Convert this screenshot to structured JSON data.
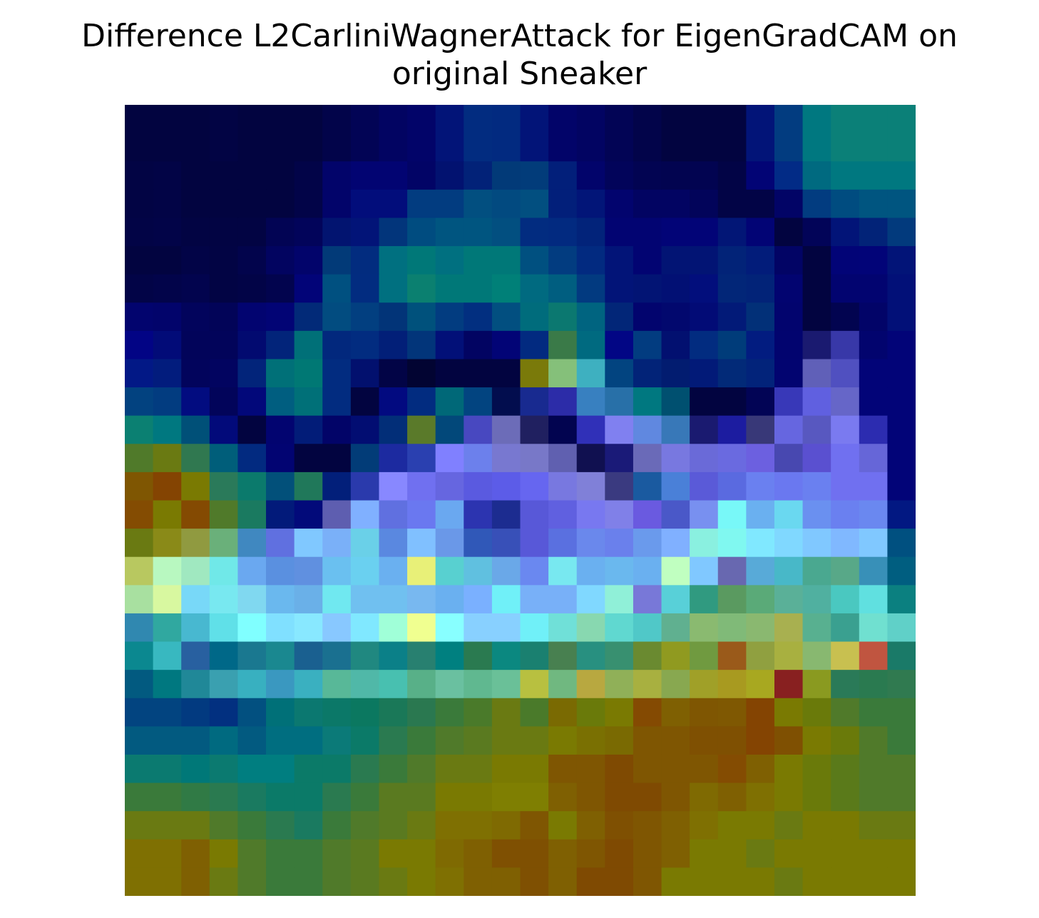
{
  "chart_data": {
    "type": "heatmap",
    "title_lines": [
      "Difference L2CarliniWagnerAttack for EigenGradCAM on",
      "original Sneaker"
    ],
    "axes_visible": false,
    "rows": 28,
    "cols": 28,
    "cells": [
      [
        "#020440",
        "#020440",
        "#020440",
        "#020444",
        "#020440",
        "#020440",
        "#020440",
        "#02044a",
        "#020455",
        "#020462",
        "#020469",
        "#021478",
        "#022c80",
        "#022a80",
        "#021478",
        "#020469",
        "#020462",
        "#020455",
        "#02044a",
        "#020440",
        "#020440",
        "#020440",
        "#021478",
        "#023c80",
        "#007880",
        "#0b8078",
        "#0b8078",
        "#0b8078"
      ],
      [
        "#020440",
        "#020440",
        "#020440",
        "#020444",
        "#020440",
        "#020440",
        "#020440",
        "#02044a",
        "#020455",
        "#020462",
        "#020469",
        "#021478",
        "#022c80",
        "#022a80",
        "#021478",
        "#020469",
        "#020462",
        "#020455",
        "#02044a",
        "#020440",
        "#020440",
        "#020440",
        "#021478",
        "#023c80",
        "#007880",
        "#0b8078",
        "#0b8078",
        "#0b8078"
      ],
      [
        "#020444",
        "#020446",
        "#020440",
        "#020440",
        "#020440",
        "#020440",
        "#020448",
        "#02046a",
        "#020472",
        "#020472",
        "#020466",
        "#021270",
        "#022278",
        "#023a78",
        "#023c7a",
        "#021f7a",
        "#02046b",
        "#02045a",
        "#020452",
        "#020450",
        "#020451",
        "#020446",
        "#020475",
        "#022b86",
        "#006a80",
        "#007880",
        "#007880",
        "#007880"
      ],
      [
        "#020444",
        "#020446",
        "#020440",
        "#020440",
        "#020440",
        "#020440",
        "#020448",
        "#02046a",
        "#020d7b",
        "#020d7b",
        "#023c80",
        "#023c80",
        "#024f80",
        "#024a80",
        "#024f80",
        "#021f7a",
        "#021578",
        "#02046e",
        "#020462",
        "#020462",
        "#02045a",
        "#020446",
        "#020446",
        "#020466",
        "#023c80",
        "#004c80",
        "#005580",
        "#005580"
      ],
      [
        "#020446",
        "#020448",
        "#020443",
        "#020443",
        "#020443",
        "#020454",
        "#02045a",
        "#021470",
        "#021478",
        "#02357b",
        "#004c80",
        "#005580",
        "#005580",
        "#024f80",
        "#022c80",
        "#022a80",
        "#02237a",
        "#020472",
        "#020472",
        "#020477",
        "#020477",
        "#021676",
        "#020475",
        "#020440",
        "#020458",
        "#021478",
        "#022378",
        "#023a7d"
      ],
      [
        "#020440",
        "#020440",
        "#020447",
        "#020444",
        "#02044c",
        "#020460",
        "#02046b",
        "#023a78",
        "#022c7f",
        "#007080",
        "#007878",
        "#007080",
        "#007878",
        "#007878",
        "#005080",
        "#023c80",
        "#022a80",
        "#021478",
        "#020472",
        "#021474",
        "#021474",
        "#022378",
        "#021c7a",
        "#020465",
        "#020440",
        "#020477",
        "#020478",
        "#021478"
      ],
      [
        "#020447",
        "#02044a",
        "#02044e",
        "#020444",
        "#020447",
        "#02044e",
        "#020478",
        "#005080",
        "#022c80",
        "#007080",
        "#0b8070",
        "#007878",
        "#007878",
        "#008078",
        "#006a80",
        "#005e80",
        "#023a80",
        "#021478",
        "#021474",
        "#021074",
        "#020e7c",
        "#022678",
        "#022378",
        "#020470",
        "#020440",
        "#020470",
        "#020470",
        "#021078"
      ],
      [
        "#02046e",
        "#02046b",
        "#02045c",
        "#020458",
        "#020470",
        "#020475",
        "#022a78",
        "#024c80",
        "#023f80",
        "#023478",
        "#00517c",
        "#023c80",
        "#022f80",
        "#024f80",
        "#006c7c",
        "#0b7870",
        "#006480",
        "#022678",
        "#02046e",
        "#02086e",
        "#020b76",
        "#021a78",
        "#023078",
        "#02046e",
        "#020440",
        "#020450",
        "#020468",
        "#021078"
      ],
      [
        "#020485",
        "#020b78",
        "#02045a",
        "#02045a",
        "#020a70",
        "#02247a",
        "#007078",
        "#02287d",
        "#022c80",
        "#021f78",
        "#02357a",
        "#021078",
        "#020462",
        "#020476",
        "#022a80",
        "#3a7a48",
        "#006a80",
        "#020685",
        "#023c80",
        "#021070",
        "#022c80",
        "#003c7a",
        "#021c80",
        "#02046f",
        "#1a1a70",
        "#3838a8",
        "#02046e",
        "#020478"
      ],
      [
        "#021886",
        "#021c7d",
        "#02045c",
        "#020460",
        "#02247a",
        "#007078",
        "#007874",
        "#022c80",
        "#02106e",
        "#020446",
        "#020432",
        "#020440",
        "#020440",
        "#020440",
        "#7a7a0a",
        "#85c07a",
        "#3eb0c0",
        "#024480",
        "#022378",
        "#021c70",
        "#021a78",
        "#022a78",
        "#02237a",
        "#020470",
        "#6060b8",
        "#5050c0",
        "#020478",
        "#020478"
      ],
      [
        "#024280",
        "#023c80",
        "#020c80",
        "#02045a",
        "#02087a",
        "#005e80",
        "#007078",
        "#022c80",
        "#020440",
        "#020a80",
        "#022c80",
        "#006878",
        "#024480",
        "#020d4e",
        "#182a90",
        "#2c2ca8",
        "#3880c0",
        "#2870a8",
        "#007880",
        "#005070",
        "#020440",
        "#020440",
        "#020455",
        "#3838b8",
        "#6060e0",
        "#6666c8",
        "#020478",
        "#020478"
      ],
      [
        "#0b8072",
        "#007880",
        "#005078",
        "#020a7a",
        "#020440",
        "#020470",
        "#021c78",
        "#020468",
        "#020d72",
        "#022e78",
        "#5a7a2a",
        "#02487a",
        "#4848c0",
        "#6c6cb8",
        "#202060",
        "#020450",
        "#3030b8",
        "#8080f0",
        "#6088e0",
        "#3878b8",
        "#1a1a70",
        "#1c1ca0",
        "#383878",
        "#6666e0",
        "#5858c0",
        "#7a7af0",
        "#2c2cb0",
        "#020478"
      ],
      [
        "#507a2a",
        "#6a7a12",
        "#307850",
        "#005e7a",
        "#022a80",
        "#020472",
        "#020440",
        "#020440",
        "#023c78",
        "#1c2aa0",
        "#2a40b0",
        "#8080ff",
        "#6c80ec",
        "#7878d0",
        "#7878c8",
        "#6060b0",
        "#101050",
        "#1a1a78",
        "#6a6ab8",
        "#7878e0",
        "#6a6ad8",
        "#6a6ae0",
        "#6c60e0",
        "#4848b0",
        "#5a50d0",
        "#7070f0",
        "#6666d8",
        "#020478"
      ],
      [
        "#7f5602",
        "#844402",
        "#7a7a02",
        "#2a7a5a",
        "#0b7a6c",
        "#02507a",
        "#20785a",
        "#021f7a",
        "#2a3aac",
        "#8888ff",
        "#7070f0",
        "#6666e0",
        "#5a5ae0",
        "#5c5ce8",
        "#6666f0",
        "#7878e0",
        "#8080d8",
        "#3a3a80",
        "#1a5aa0",
        "#4a80d8",
        "#5a5ad8",
        "#5a6ae0",
        "#6a80f0",
        "#6a78f0",
        "#6a80f0",
        "#7070f0",
        "#7070f0",
        "#020478"
      ],
      [
        "#844c02",
        "#7a7a02",
        "#844a02",
        "#507a2a",
        "#1a7a60",
        "#021a7a",
        "#020a7a",
        "#5e5eb0",
        "#80b0ff",
        "#6070e0",
        "#6a78f0",
        "#6aa8f0",
        "#2c34b0",
        "#1c2c90",
        "#5858d8",
        "#6060e0",
        "#7878f0",
        "#8080e8",
        "#6a5ae0",
        "#4a58c8",
        "#7890f0",
        "#78f8f8",
        "#6ab0f0",
        "#6ad8f0",
        "#6a90f0",
        "#6a80f0",
        "#6a88f0",
        "#021882"
      ],
      [
        "#6a7a12",
        "#8a8a18",
        "#909a40",
        "#6ab07a",
        "#4088c0",
        "#6070e0",
        "#80c8ff",
        "#7ab0f8",
        "#6ad0e8",
        "#5a88e0",
        "#80c0ff",
        "#6a98e8",
        "#3058b8",
        "#3850b8",
        "#5858d8",
        "#5a70e0",
        "#6a88ec",
        "#6a80ec",
        "#6a9aec",
        "#80b0ff",
        "#8af0e0",
        "#80f8f0",
        "#80e8ff",
        "#80d8ff",
        "#80c8ff",
        "#80b8ff",
        "#80c8ff",
        "#005080"
      ],
      [
        "#b8c860",
        "#b8f8c0",
        "#a0e8c0",
        "#70e8e8",
        "#6aa8f0",
        "#5a90e0",
        "#6090e0",
        "#6ac0f0",
        "#6ad0f0",
        "#6ab0f0",
        "#e8f078",
        "#58d0d0",
        "#60c0e0",
        "#6aa8e8",
        "#6a88f0",
        "#78e8f0",
        "#6ab0f0",
        "#6ab8ee",
        "#6ab0f0",
        "#c0ffc0",
        "#80c8ff",
        "#6868b0",
        "#58aad8",
        "#48b8c8",
        "#4aa890",
        "#58a888",
        "#3890b8",
        "#005e80"
      ],
      [
        "#a8e0a0",
        "#d8f8a0",
        "#78d8f8",
        "#78e8f0",
        "#80d8f0",
        "#6ab8ee",
        "#6ab0e8",
        "#70e8f0",
        "#70c0f0",
        "#70c0f0",
        "#78b8f0",
        "#6ab0f0",
        "#7ab0ff",
        "#70f0f8",
        "#78b0f8",
        "#78b0f8",
        "#80d8ff",
        "#90f0d8",
        "#7878d8",
        "#58d0d8",
        "#309a80",
        "#5a9a60",
        "#5aaa78",
        "#5ab098",
        "#50b0a0",
        "#4ac8c0",
        "#60e0e0",
        "#0b8080"
      ],
      [
        "#3088b0",
        "#30a8a0",
        "#48b8d0",
        "#60e0e8",
        "#80ffff",
        "#80e0ff",
        "#88e8ff",
        "#88c8ff",
        "#80e8ff",
        "#a0ffd8",
        "#f0ff90",
        "#88ffff",
        "#88d0ff",
        "#88d0ff",
        "#70f0f8",
        "#70e0d8",
        "#88d8b0",
        "#60d8d0",
        "#50c8c8",
        "#60b090",
        "#8aba70",
        "#80ba78",
        "#8ab870",
        "#a8b050",
        "#58b090",
        "#3aa090",
        "#70e0d0",
        "#60d0c8"
      ],
      [
        "#0b8890",
        "#38b8c0",
        "#2860a0",
        "#006888",
        "#1a7890",
        "#1a8890",
        "#1a6090",
        "#1a7090",
        "#208880",
        "#0b8088",
        "#288070",
        "#008080",
        "#2a7a50",
        "#0b8880",
        "#1a8070",
        "#488050",
        "#289080",
        "#389070",
        "#6a8a30",
        "#909a20",
        "#709a40",
        "#9a5a1a",
        "#90a040",
        "#a8b040",
        "#88b870",
        "#c8c050",
        "#c05540",
        "#1a7a68"
      ],
      [
        "#025a80",
        "#007880",
        "#208898",
        "#3aa0b0",
        "#38b0c0",
        "#3a98c0",
        "#3ab0c0",
        "#58b898",
        "#50b8a8",
        "#48c0b0",
        "#58b088",
        "#6ac0a0",
        "#60b890",
        "#6ac098",
        "#b8c040",
        "#70b880",
        "#b8a840",
        "#90b058",
        "#a8b040",
        "#88a850",
        "#a0a028",
        "#a89a20",
        "#a8a820",
        "#882020",
        "#8a9a20",
        "#2a7a58",
        "#2a7a50",
        "#307a50"
      ],
      [
        "#024480",
        "#024480",
        "#023a80",
        "#023080",
        "#025080",
        "#007078",
        "#0b7870",
        "#0b7868",
        "#0b7860",
        "#1a7858",
        "#2a7850",
        "#3a7a3a",
        "#4a7a2a",
        "#6a7a12",
        "#4a7a2a",
        "#7a6a02",
        "#6a7a0a",
        "#7a7a02",
        "#844a02",
        "#7f6002",
        "#7f5602",
        "#7f5802",
        "#844402",
        "#7a7a02",
        "#6a7a0a",
        "#507a2a",
        "#3a7a3a",
        "#3a7a3a"
      ],
      [
        "#025a80",
        "#025a80",
        "#025a80",
        "#006a80",
        "#025a80",
        "#006e80",
        "#006e80",
        "#0b7a78",
        "#0b7a68",
        "#2a7a50",
        "#3a7a3a",
        "#507a2a",
        "#5a7a20",
        "#6a7a12",
        "#6a7a12",
        "#7a7a02",
        "#7a7002",
        "#7a6a02",
        "#7f5602",
        "#7f5602",
        "#7f5002",
        "#7f5002",
        "#844402",
        "#7f5002",
        "#7a7a02",
        "#6a7a0a",
        "#507a2a",
        "#3a7a3a"
      ],
      [
        "#0b7a70",
        "#0b7a70",
        "#007878",
        "#0b7a70",
        "#007e80",
        "#007e80",
        "#0b7a68",
        "#0b7a68",
        "#2a7a50",
        "#3a7a3a",
        "#507a2a",
        "#6a7a12",
        "#6a7a12",
        "#7a7a02",
        "#7a7a02",
        "#7f5602",
        "#7f5602",
        "#7f4a02",
        "#7f5602",
        "#7f5602",
        "#7f5602",
        "#844c02",
        "#7f6002",
        "#7a7a02",
        "#6a7a0a",
        "#5a7a1a",
        "#507a2a",
        "#507a2a"
      ],
      [
        "#3a7a3a",
        "#3a7a3a",
        "#307a45",
        "#2a7a50",
        "#1a7a60",
        "#0b7a68",
        "#0b7a68",
        "#2a7a50",
        "#3a7a3a",
        "#5a7a20",
        "#5a7a20",
        "#7a7a02",
        "#7a7a02",
        "#7f7f02",
        "#7f7f02",
        "#7f6002",
        "#7f5602",
        "#7f4a02",
        "#7f4a02",
        "#7f5602",
        "#7f6a02",
        "#7f6002",
        "#7f7002",
        "#7a7a02",
        "#6a7a0a",
        "#5a7a1a",
        "#507a2a",
        "#507a2a"
      ],
      [
        "#6a7a12",
        "#6a7a12",
        "#6a7a12",
        "#507a2a",
        "#3a7a3a",
        "#2a7a50",
        "#1a7a60",
        "#3a7a3a",
        "#507a2a",
        "#5a7a20",
        "#6a7a12",
        "#7f7002",
        "#7f7002",
        "#7f6a02",
        "#7f5602",
        "#7a7a02",
        "#7f6002",
        "#7f5002",
        "#7f5602",
        "#7f6002",
        "#7f7002",
        "#7a7a02",
        "#7a7a02",
        "#6a7a12",
        "#7a7a02",
        "#7a7a02",
        "#6a7a12",
        "#6a7a12"
      ],
      [
        "#7f7002",
        "#7f7002",
        "#7f6002",
        "#7a7a02",
        "#507a2a",
        "#3a7a3a",
        "#3a7a3a",
        "#507a2a",
        "#5a7a20",
        "#7a7a02",
        "#7a7a02",
        "#7f6a02",
        "#7f6002",
        "#7f5002",
        "#7f5002",
        "#7f6002",
        "#7f5602",
        "#7f4a02",
        "#7f5602",
        "#7f6002",
        "#7a7a02",
        "#7a7a02",
        "#6a7a12",
        "#7a7a02",
        "#7a7a02",
        "#7a7a02",
        "#7a7a02",
        "#7a7a02"
      ],
      [
        "#7f7002",
        "#7f7002",
        "#7f6002",
        "#6a7a12",
        "#507a2a",
        "#3a7a3a",
        "#3a7a3a",
        "#507a2a",
        "#5a7a20",
        "#6a7a12",
        "#7a7a02",
        "#7f7002",
        "#7f6002",
        "#7f6002",
        "#7f5002",
        "#7f6002",
        "#7f4a02",
        "#7f4a02",
        "#7f5602",
        "#7a7a02",
        "#7a7a02",
        "#7a7a02",
        "#7a7a02",
        "#6a7a12",
        "#7a7a02",
        "#7a7a02",
        "#7a7a02",
        "#7a7a02"
      ]
    ]
  }
}
